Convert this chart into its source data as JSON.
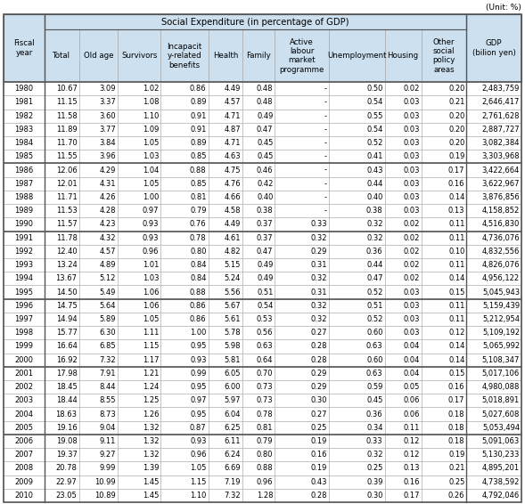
{
  "unit_text": "(Unit: %)",
  "main_header": "Social Expenditure (in percentage of GDP)",
  "col_headers_line1": [
    "Fiscal",
    "Total",
    "Old age",
    "Survivors",
    "Incapacit",
    "Health",
    "Family",
    "Active",
    "Unemployment",
    "Housing",
    "Other",
    "GDP"
  ],
  "col_headers_line2": [
    "year",
    "",
    "",
    "",
    "y-related",
    "",
    "",
    "labour",
    "",
    "",
    "social",
    "(bilion yen)"
  ],
  "col_headers_line3": [
    "",
    "",
    "",
    "",
    "benefits",
    "",
    "",
    "market",
    "",
    "",
    "policy",
    ""
  ],
  "col_headers_line4": [
    "",
    "",
    "",
    "",
    "",
    "",
    "",
    "programme",
    "",
    "",
    "areas",
    ""
  ],
  "col_headers_display": [
    "Fiscal\nyear",
    "Total",
    "Old age",
    "Survivors",
    "Incapacit\ny-related\nbenefits",
    "Health",
    "Family",
    "Active\nlabour\nmarket\nprogramme",
    "Unemployment",
    "Housing",
    "Other\nsocial\npolicy\nareas",
    "GDP\n(bilion yen)"
  ],
  "rows": [
    [
      "1980",
      "10.67",
      "3.09",
      "1.02",
      "0.86",
      "4.49",
      "0.48",
      "-",
      "0.50",
      "0.02",
      "0.20",
      "2,483,759"
    ],
    [
      "1981",
      "11.15",
      "3.37",
      "1.08",
      "0.89",
      "4.57",
      "0.48",
      "-",
      "0.54",
      "0.03",
      "0.21",
      "2,646,417"
    ],
    [
      "1982",
      "11.58",
      "3.60",
      "1.10",
      "0.91",
      "4.71",
      "0.49",
      "-",
      "0.55",
      "0.03",
      "0.20",
      "2,761,628"
    ],
    [
      "1983",
      "11.89",
      "3.77",
      "1.09",
      "0.91",
      "4.87",
      "0.47",
      "-",
      "0.54",
      "0.03",
      "0.20",
      "2,887,727"
    ],
    [
      "1984",
      "11.70",
      "3.84",
      "1.05",
      "0.89",
      "4.71",
      "0.45",
      "-",
      "0.52",
      "0.03",
      "0.20",
      "3,082,384"
    ],
    [
      "1985",
      "11.55",
      "3.96",
      "1.03",
      "0.85",
      "4.63",
      "0.45",
      "-",
      "0.41",
      "0.03",
      "0.19",
      "3,303,968"
    ],
    [
      "1986",
      "12.06",
      "4.29",
      "1.04",
      "0.88",
      "4.75",
      "0.46",
      "-",
      "0.43",
      "0.03",
      "0.17",
      "3,422,664"
    ],
    [
      "1987",
      "12.01",
      "4.31",
      "1.05",
      "0.85",
      "4.76",
      "0.42",
      "-",
      "0.44",
      "0.03",
      "0.16",
      "3,622,967"
    ],
    [
      "1988",
      "11.71",
      "4.26",
      "1.00",
      "0.81",
      "4.66",
      "0.40",
      "-",
      "0.40",
      "0.03",
      "0.14",
      "3,876,856"
    ],
    [
      "1989",
      "11.53",
      "4.28",
      "0.97",
      "0.79",
      "4.58",
      "0.38",
      "-",
      "0.38",
      "0.03",
      "0.13",
      "4,158,852"
    ],
    [
      "1990",
      "11.57",
      "4.23",
      "0.93",
      "0.76",
      "4.49",
      "0.37",
      "0.33",
      "0.32",
      "0.02",
      "0.11",
      "4,516,830"
    ],
    [
      "1991",
      "11.78",
      "4.32",
      "0.93",
      "0.78",
      "4.61",
      "0.37",
      "0.32",
      "0.32",
      "0.02",
      "0.11",
      "4,736,076"
    ],
    [
      "1992",
      "12.40",
      "4.57",
      "0.96",
      "0.80",
      "4.82",
      "0.47",
      "0.29",
      "0.36",
      "0.02",
      "0.10",
      "4,832,556"
    ],
    [
      "1993",
      "13.24",
      "4.89",
      "1.01",
      "0.84",
      "5.15",
      "0.49",
      "0.31",
      "0.44",
      "0.02",
      "0.11",
      "4,826,076"
    ],
    [
      "1994",
      "13.67",
      "5.12",
      "1.03",
      "0.84",
      "5.24",
      "0.49",
      "0.32",
      "0.47",
      "0.02",
      "0.14",
      "4,956,122"
    ],
    [
      "1995",
      "14.50",
      "5.49",
      "1.06",
      "0.88",
      "5.56",
      "0.51",
      "0.31",
      "0.52",
      "0.03",
      "0.15",
      "5,045,943"
    ],
    [
      "1996",
      "14.75",
      "5.64",
      "1.06",
      "0.86",
      "5.67",
      "0.54",
      "0.32",
      "0.51",
      "0.03",
      "0.11",
      "5,159,439"
    ],
    [
      "1997",
      "14.94",
      "5.89",
      "1.05",
      "0.86",
      "5.61",
      "0.53",
      "0.32",
      "0.52",
      "0.03",
      "0.11",
      "5,212,954"
    ],
    [
      "1998",
      "15.77",
      "6.30",
      "1.11",
      "1.00",
      "5.78",
      "0.56",
      "0.27",
      "0.60",
      "0.03",
      "0.12",
      "5,109,192"
    ],
    [
      "1999",
      "16.64",
      "6.85",
      "1.15",
      "0.95",
      "5.98",
      "0.63",
      "0.28",
      "0.63",
      "0.04",
      "0.14",
      "5,065,992"
    ],
    [
      "2000",
      "16.92",
      "7.32",
      "1.17",
      "0.93",
      "5.81",
      "0.64",
      "0.28",
      "0.60",
      "0.04",
      "0.14",
      "5,108,347"
    ],
    [
      "2001",
      "17.98",
      "7.91",
      "1.21",
      "0.99",
      "6.05",
      "0.70",
      "0.29",
      "0.63",
      "0.04",
      "0.15",
      "5,017,106"
    ],
    [
      "2002",
      "18.45",
      "8.44",
      "1.24",
      "0.95",
      "6.00",
      "0.73",
      "0.29",
      "0.59",
      "0.05",
      "0.16",
      "4,980,088"
    ],
    [
      "2003",
      "18.44",
      "8.55",
      "1.25",
      "0.97",
      "5.97",
      "0.73",
      "0.30",
      "0.45",
      "0.06",
      "0.17",
      "5,018,891"
    ],
    [
      "2004",
      "18.63",
      "8.73",
      "1.26",
      "0.95",
      "6.04",
      "0.78",
      "0.27",
      "0.36",
      "0.06",
      "0.18",
      "5,027,608"
    ],
    [
      "2005",
      "19.16",
      "9.04",
      "1.32",
      "0.87",
      "6.25",
      "0.81",
      "0.25",
      "0.34",
      "0.11",
      "0.18",
      "5,053,494"
    ],
    [
      "2006",
      "19.08",
      "9.11",
      "1.32",
      "0.93",
      "6.11",
      "0.79",
      "0.19",
      "0.33",
      "0.12",
      "0.18",
      "5,091,063"
    ],
    [
      "2007",
      "19.37",
      "9.27",
      "1.32",
      "0.96",
      "6.24",
      "0.80",
      "0.16",
      "0.32",
      "0.12",
      "0.19",
      "5,130,233"
    ],
    [
      "2008",
      "20.78",
      "9.99",
      "1.39",
      "1.05",
      "6.69",
      "0.88",
      "0.19",
      "0.25",
      "0.13",
      "0.21",
      "4,895,201"
    ],
    [
      "2009",
      "22.97",
      "10.99",
      "1.45",
      "1.15",
      "7.19",
      "0.96",
      "0.43",
      "0.39",
      "0.16",
      "0.25",
      "4,738,592"
    ],
    [
      "2010",
      "23.05",
      "10.89",
      "1.45",
      "1.10",
      "7.32",
      "1.28",
      "0.28",
      "0.30",
      "0.17",
      "0.26",
      "4,792,046"
    ]
  ],
  "group_ends": [
    5,
    10,
    15,
    20,
    25
  ],
  "header_bg": "#cce0f0",
  "row_bg": "#ffffff",
  "border_light": "#aaaaaa",
  "border_dark": "#555555",
  "font_size_data": 6.0,
  "font_size_header": 6.2,
  "font_size_main": 7.2,
  "font_size_unit": 6.5
}
